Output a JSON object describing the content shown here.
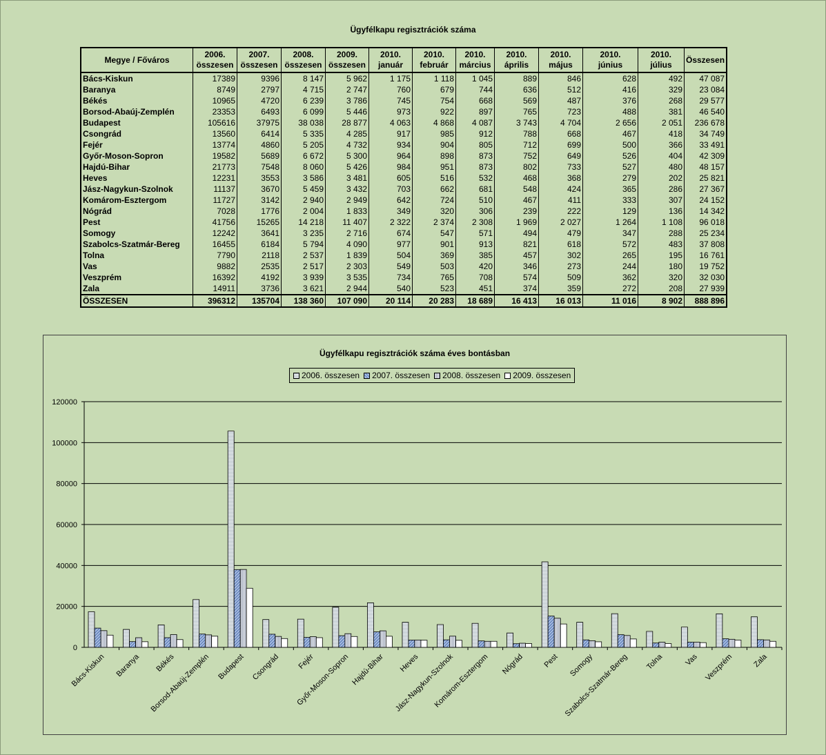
{
  "table": {
    "title": "Ügyfélkapu regisztrációk száma",
    "headers": [
      {
        "l1": "Megye / Főváros",
        "l2": ""
      },
      {
        "l1": "2006.",
        "l2": "összesen"
      },
      {
        "l1": "2007.",
        "l2": "összesen"
      },
      {
        "l1": "2008.",
        "l2": "összesen"
      },
      {
        "l1": "2009.",
        "l2": "összesen"
      },
      {
        "l1": "2010.",
        "l2": "január"
      },
      {
        "l1": "2010.",
        "l2": "február"
      },
      {
        "l1": "2010.",
        "l2": "március"
      },
      {
        "l1": "2010.",
        "l2": "április"
      },
      {
        "l1": "2010.",
        "l2": "május"
      },
      {
        "l1": "2010.",
        "l2": "június"
      },
      {
        "l1": "2010.",
        "l2": "július"
      },
      {
        "l1": "Összesen",
        "l2": ""
      }
    ],
    "rows": [
      [
        "Bács-Kiskun",
        "17389",
        "9396",
        "8 147",
        "5 962",
        "1 175",
        "1 118",
        "1 045",
        "889",
        "846",
        "628",
        "492",
        "47 087"
      ],
      [
        "Baranya",
        "8749",
        "2797",
        "4 715",
        "2 747",
        "760",
        "679",
        "744",
        "636",
        "512",
        "416",
        "329",
        "23 084"
      ],
      [
        "Békés",
        "10965",
        "4720",
        "6 239",
        "3 786",
        "745",
        "754",
        "668",
        "569",
        "487",
        "376",
        "268",
        "29 577"
      ],
      [
        "Borsod-Abaúj-Zemplén",
        "23353",
        "6493",
        "6 099",
        "5 446",
        "973",
        "922",
        "897",
        "765",
        "723",
        "488",
        "381",
        "46 540"
      ],
      [
        "Budapest",
        "105616",
        "37975",
        "38 038",
        "28 877",
        "4 063",
        "4 868",
        "4 087",
        "3 743",
        "4 704",
        "2 656",
        "2 051",
        "236 678"
      ],
      [
        "Csongrád",
        "13560",
        "6414",
        "5 335",
        "4 285",
        "917",
        "985",
        "912",
        "788",
        "668",
        "467",
        "418",
        "34 749"
      ],
      [
        "Fejér",
        "13774",
        "4860",
        "5 205",
        "4 732",
        "934",
        "904",
        "805",
        "712",
        "699",
        "500",
        "366",
        "33 491"
      ],
      [
        "Győr-Moson-Sopron",
        "19582",
        "5689",
        "6 672",
        "5 300",
        "964",
        "898",
        "873",
        "752",
        "649",
        "526",
        "404",
        "42 309"
      ],
      [
        "Hajdú-Bihar",
        "21773",
        "7548",
        "8 060",
        "5 426",
        "984",
        "951",
        "873",
        "802",
        "733",
        "527",
        "480",
        "48 157"
      ],
      [
        "Heves",
        "12231",
        "3553",
        "3 586",
        "3 481",
        "605",
        "516",
        "532",
        "468",
        "368",
        "279",
        "202",
        "25 821"
      ],
      [
        "Jász-Nagykun-Szolnok",
        "11137",
        "3670",
        "5 459",
        "3 432",
        "703",
        "662",
        "681",
        "548",
        "424",
        "365",
        "286",
        "27 367"
      ],
      [
        "Komárom-Esztergom",
        "11727",
        "3142",
        "2 940",
        "2 949",
        "642",
        "724",
        "510",
        "467",
        "411",
        "333",
        "307",
        "24 152"
      ],
      [
        "Nógrád",
        "7028",
        "1776",
        "2 004",
        "1 833",
        "349",
        "320",
        "306",
        "239",
        "222",
        "129",
        "136",
        "14 342"
      ],
      [
        "Pest",
        "41756",
        "15265",
        "14 218",
        "11 407",
        "2 322",
        "2 374",
        "2 308",
        "1 969",
        "2 027",
        "1 264",
        "1 108",
        "96 018"
      ],
      [
        "Somogy",
        "12242",
        "3641",
        "3 235",
        "2 716",
        "674",
        "547",
        "571",
        "494",
        "479",
        "347",
        "288",
        "25 234"
      ],
      [
        "Szabolcs-Szatmár-Bereg",
        "16455",
        "6184",
        "5 794",
        "4 090",
        "977",
        "901",
        "913",
        "821",
        "618",
        "572",
        "483",
        "37 808"
      ],
      [
        "Tolna",
        "7790",
        "2118",
        "2 537",
        "1 839",
        "504",
        "369",
        "385",
        "457",
        "302",
        "265",
        "195",
        "16 761"
      ],
      [
        "Vas",
        "9882",
        "2535",
        "2 517",
        "2 303",
        "549",
        "503",
        "420",
        "346",
        "273",
        "244",
        "180",
        "19 752"
      ],
      [
        "Veszprém",
        "16392",
        "4192",
        "3 939",
        "3 535",
        "734",
        "765",
        "708",
        "574",
        "509",
        "362",
        "320",
        "32 030"
      ],
      [
        "Zala",
        "14911",
        "3736",
        "3 621",
        "2 944",
        "540",
        "523",
        "451",
        "374",
        "359",
        "272",
        "208",
        "27 939"
      ]
    ],
    "total": [
      "ÖSSZESEN",
      "396312",
      "135704",
      "138 360",
      "107 090",
      "20 114",
      "20 283",
      "18 689",
      "16 413",
      "16 013",
      "11 016",
      "8 902",
      "888 896"
    ]
  },
  "chart_data": {
    "type": "bar",
    "title": "Ügyfélkapu regisztrációk száma éves bontásban",
    "categories": [
      "Bács-Kiskun",
      "Baranya",
      "Békés",
      "Borsod-Abaúj-Zemplén",
      "Budapest",
      "Csongrád",
      "Fejér",
      "Győr-Moson-Sopron",
      "Hajdú-Bihar",
      "Heves",
      "Jász-Nagykun-Szolnok",
      "Komárom-Esztergom",
      "Nógrád",
      "Pest",
      "Somogy",
      "Szabolcs-Szatmár-Bereg",
      "Tolna",
      "Vas",
      "Veszprém",
      "Zala"
    ],
    "series": [
      {
        "name": "2006. összesen",
        "values": [
          17389,
          8749,
          10965,
          23353,
          105616,
          13560,
          13774,
          19582,
          21773,
          12231,
          11137,
          11727,
          7028,
          41756,
          12242,
          16455,
          7790,
          9882,
          16392,
          14911
        ]
      },
      {
        "name": "2007. összesen",
        "values": [
          9396,
          2797,
          4720,
          6493,
          37975,
          6414,
          4860,
          5689,
          7548,
          3553,
          3670,
          3142,
          1776,
          15265,
          3641,
          6184,
          2118,
          2535,
          4192,
          3736
        ]
      },
      {
        "name": "2008. összesen",
        "values": [
          8147,
          4715,
          6239,
          6099,
          38038,
          5335,
          5205,
          6672,
          8060,
          3586,
          5459,
          2940,
          2004,
          14218,
          3235,
          5794,
          2537,
          2517,
          3939,
          3621
        ]
      },
      {
        "name": "2009. összesen",
        "values": [
          5962,
          2747,
          3786,
          5446,
          28877,
          4285,
          4732,
          5300,
          5426,
          3481,
          3432,
          2949,
          1833,
          11407,
          2716,
          4090,
          1839,
          2303,
          3535,
          2944
        ]
      }
    ],
    "ylim": [
      0,
      120000
    ],
    "yticks": [
      0,
      20000,
      40000,
      60000,
      80000,
      100000,
      120000
    ],
    "grid": true,
    "legend_position": "top"
  }
}
